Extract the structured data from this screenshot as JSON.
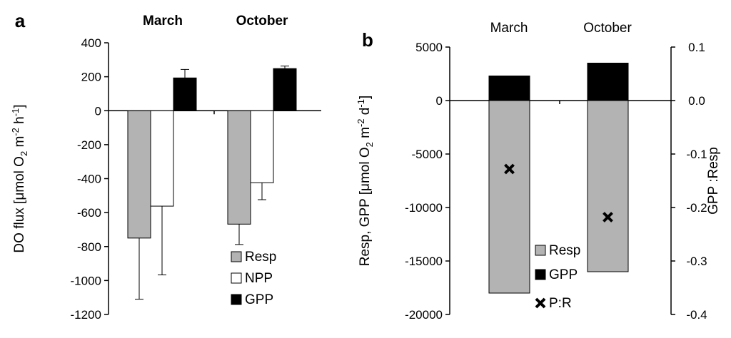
{
  "chart_data": [
    {
      "panel_label": "a",
      "type": "bar",
      "categories": [
        "March",
        "October"
      ],
      "series": [
        {
          "name": "Resp",
          "values": [
            -750,
            -668
          ],
          "errors": [
            360,
            120
          ],
          "color": "#b3b3b3"
        },
        {
          "name": "NPP",
          "values": [
            -562,
            -424
          ],
          "errors": [
            405,
            100
          ],
          "color": "#ffffff"
        },
        {
          "name": "GPP",
          "values": [
            193,
            248
          ],
          "errors": [
            50,
            15
          ],
          "color": "#000000"
        }
      ],
      "ylabel_parts": [
        "DO flux [μmol O",
        "2",
        " m",
        "-2",
        " h",
        "-1",
        "]"
      ],
      "ylim": [
        -1200,
        400
      ],
      "yticks": [
        "400",
        "200",
        "0",
        "-200",
        "-400",
        "-600",
        "-800",
        "-1000",
        "-1200"
      ],
      "legend_position": "bottom-right",
      "grid": false
    },
    {
      "panel_label": "b",
      "type": "bar",
      "categories": [
        "March",
        "October"
      ],
      "series": [
        {
          "name": "Resp",
          "values": [
            -18000,
            -16000
          ],
          "color": "#b3b3b3"
        },
        {
          "name": "GPP",
          "values": [
            2300,
            3500
          ],
          "color": "#000000"
        },
        {
          "name": "P:R",
          "axis": "right",
          "marker": "x",
          "values": [
            -0.128,
            -0.218
          ],
          "color": "#000000"
        }
      ],
      "ylabel_parts": [
        "Resp, GPP [μmol O",
        "2",
        " m",
        "-2",
        " d",
        "-1",
        "]"
      ],
      "ylim": [
        -20000,
        5000
      ],
      "yticks": [
        "5000",
        "0",
        "-5000",
        "-10000",
        "-15000",
        "-20000"
      ],
      "y2label": "GPP :Resp",
      "y2lim": [
        -0.4,
        0.1
      ],
      "y2ticks": [
        "0.1",
        "0.0",
        "-0.1",
        "-0.2",
        "-0.3",
        "-0.4"
      ],
      "legend_position": "bottom-center",
      "grid": false
    }
  ]
}
